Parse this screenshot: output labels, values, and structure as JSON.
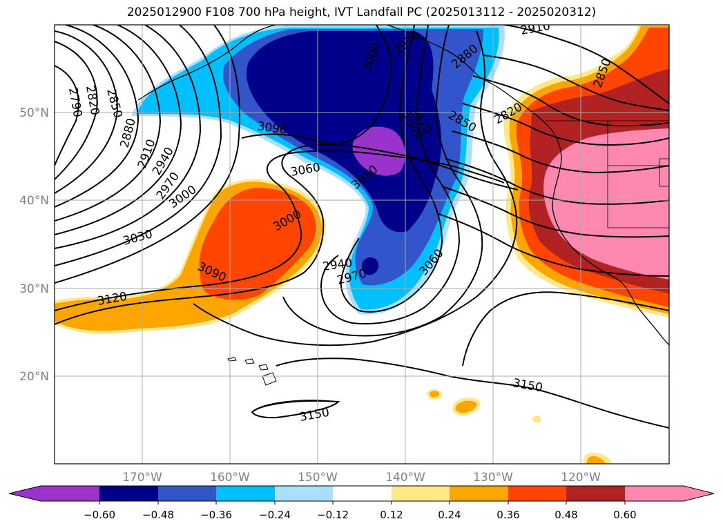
{
  "title": "2025012900 F108 700 hPa height, IVT Landfall PC (2025013112 - 2025020312)",
  "map": {
    "lon_labels": [
      "170°W",
      "160°W",
      "150°W",
      "140°W",
      "130°W",
      "120°W"
    ],
    "lat_labels": [
      "50°N",
      "40°N",
      "30°N",
      "20°N"
    ],
    "contour_labels": [
      {
        "text": "2790"
      },
      {
        "text": "2820"
      },
      {
        "text": "2850"
      },
      {
        "text": "2880"
      },
      {
        "text": "2910"
      },
      {
        "text": "2940"
      },
      {
        "text": "2970"
      },
      {
        "text": "3000"
      },
      {
        "text": "3030"
      },
      {
        "text": "3090"
      },
      {
        "text": "3120"
      },
      {
        "text": "3090"
      },
      {
        "text": "3060"
      },
      {
        "text": "3030"
      },
      {
        "text": "3000"
      },
      {
        "text": "2970"
      },
      {
        "text": "2940"
      },
      {
        "text": "2970"
      },
      {
        "text": "3060"
      },
      {
        "text": "3000"
      },
      {
        "text": "2970"
      },
      {
        "text": "2910"
      },
      {
        "text": "2880"
      },
      {
        "text": "2850"
      },
      {
        "text": "2820"
      },
      {
        "text": "2940"
      },
      {
        "text": "2850"
      },
      {
        "text": "3150"
      },
      {
        "text": "3150"
      }
    ]
  },
  "colorbar": {
    "ticks": [
      "−0.60",
      "−0.48",
      "−0.36",
      "−0.24",
      "−0.12",
      "0.12",
      "0.24",
      "0.36",
      "0.48",
      "0.60"
    ],
    "colors": [
      "#9933cc",
      "#00008b",
      "#3355cc",
      "#00bfff",
      "#aadfff",
      "#ffffff",
      "#ffe888",
      "#ffa500",
      "#ff4500",
      "#b22222",
      "#ff88b0"
    ]
  }
}
